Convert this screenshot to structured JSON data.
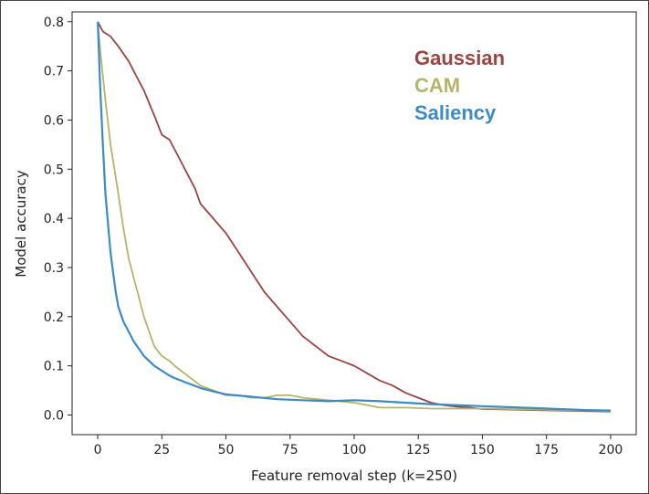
{
  "chart_data": {
    "type": "line",
    "title": "",
    "xlabel": "Feature removal step (k=250)",
    "ylabel": "Model accuracy",
    "xlim": [
      -10,
      210
    ],
    "ylim": [
      -0.04,
      0.82
    ],
    "xticks": [
      0,
      25,
      50,
      75,
      100,
      125,
      150,
      175,
      200
    ],
    "xtick_labels": [
      "0",
      "25",
      "50",
      "75",
      "100",
      "125",
      "150",
      "175",
      "200"
    ],
    "yticks": [
      0.0,
      0.1,
      0.2,
      0.3,
      0.4,
      0.5,
      0.6,
      0.7,
      0.8
    ],
    "ytick_labels": [
      "0.0",
      "0.1",
      "0.2",
      "0.3",
      "0.4",
      "0.5",
      "0.6",
      "0.7",
      "0.8"
    ],
    "grid": false,
    "legend_position": "top-right",
    "series": [
      {
        "name": "Gaussian",
        "color": "#9b4444",
        "x": [
          0,
          2,
          5,
          8,
          12,
          15,
          18,
          22,
          25,
          28,
          32,
          35,
          38,
          40,
          45,
          50,
          55,
          60,
          65,
          70,
          75,
          80,
          85,
          90,
          95,
          100,
          105,
          110,
          115,
          120,
          125,
          130,
          135,
          140,
          145,
          150,
          160,
          170,
          180,
          190,
          200
        ],
        "y": [
          0.8,
          0.78,
          0.77,
          0.75,
          0.72,
          0.69,
          0.66,
          0.61,
          0.57,
          0.56,
          0.52,
          0.49,
          0.46,
          0.43,
          0.4,
          0.37,
          0.33,
          0.29,
          0.25,
          0.22,
          0.19,
          0.16,
          0.14,
          0.12,
          0.11,
          0.1,
          0.085,
          0.07,
          0.06,
          0.045,
          0.035,
          0.025,
          0.02,
          0.017,
          0.015,
          0.012,
          0.011,
          0.01,
          0.009,
          0.008,
          0.007
        ]
      },
      {
        "name": "CAM",
        "color": "#b5b468",
        "x": [
          0,
          1,
          3,
          5,
          8,
          10,
          12,
          15,
          18,
          20,
          22,
          25,
          28,
          30,
          35,
          40,
          45,
          50,
          55,
          60,
          65,
          70,
          75,
          80,
          90,
          100,
          110,
          120,
          130,
          150,
          170,
          190,
          200
        ],
        "y": [
          0.8,
          0.74,
          0.64,
          0.55,
          0.45,
          0.38,
          0.32,
          0.26,
          0.2,
          0.17,
          0.14,
          0.12,
          0.11,
          0.1,
          0.08,
          0.06,
          0.05,
          0.04,
          0.04,
          0.035,
          0.035,
          0.04,
          0.04,
          0.035,
          0.03,
          0.025,
          0.015,
          0.015,
          0.013,
          0.013,
          0.011,
          0.009,
          0.008
        ]
      },
      {
        "name": "Saliency",
        "color": "#3d8ac4",
        "x": [
          0,
          1,
          2,
          3,
          4,
          5,
          6,
          7,
          8,
          10,
          12,
          14,
          16,
          18,
          20,
          22,
          25,
          28,
          30,
          35,
          40,
          45,
          50,
          60,
          70,
          80,
          90,
          100,
          110,
          120,
          130,
          140,
          150,
          160,
          170,
          180,
          190,
          200
        ],
        "y": [
          0.8,
          0.66,
          0.55,
          0.45,
          0.39,
          0.33,
          0.29,
          0.25,
          0.22,
          0.19,
          0.17,
          0.15,
          0.135,
          0.12,
          0.11,
          0.1,
          0.09,
          0.08,
          0.075,
          0.065,
          0.055,
          0.048,
          0.042,
          0.037,
          0.032,
          0.03,
          0.028,
          0.03,
          0.028,
          0.025,
          0.022,
          0.02,
          0.018,
          0.016,
          0.014,
          0.012,
          0.01,
          0.009
        ]
      }
    ]
  }
}
